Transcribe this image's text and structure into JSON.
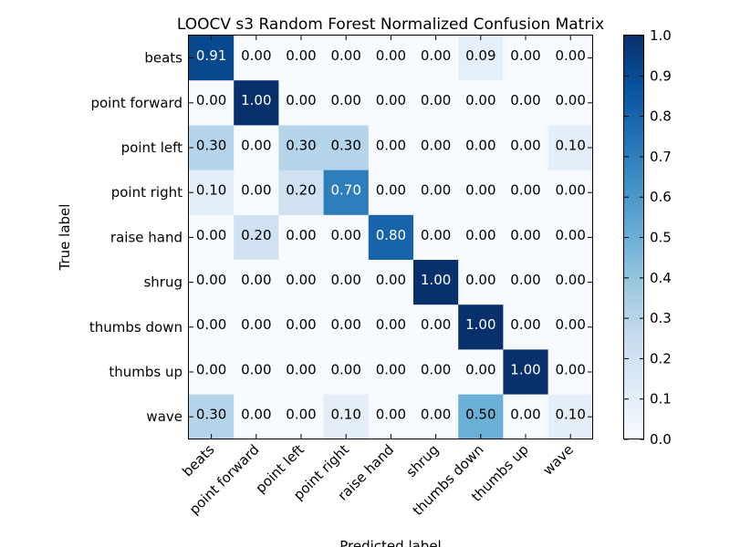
{
  "chart_data": {
    "type": "heatmap",
    "title": "LOOCV s3 Random Forest Normalized Confusion Matrix",
    "xlabel": "Predicted label",
    "ylabel": "True label",
    "labels": [
      "beats",
      "point forward",
      "point left",
      "point right",
      "raise hand",
      "shrug",
      "thumbs down",
      "thumbs up",
      "wave"
    ],
    "matrix": [
      [
        0.91,
        0.0,
        0.0,
        0.0,
        0.0,
        0.0,
        0.09,
        0.0,
        0.0
      ],
      [
        0.0,
        1.0,
        0.0,
        0.0,
        0.0,
        0.0,
        0.0,
        0.0,
        0.0
      ],
      [
        0.3,
        0.0,
        0.3,
        0.3,
        0.0,
        0.0,
        0.0,
        0.0,
        0.1
      ],
      [
        0.1,
        0.0,
        0.2,
        0.7,
        0.0,
        0.0,
        0.0,
        0.0,
        0.0
      ],
      [
        0.0,
        0.2,
        0.0,
        0.0,
        0.8,
        0.0,
        0.0,
        0.0,
        0.0
      ],
      [
        0.0,
        0.0,
        0.0,
        0.0,
        0.0,
        1.0,
        0.0,
        0.0,
        0.0
      ],
      [
        0.0,
        0.0,
        0.0,
        0.0,
        0.0,
        0.0,
        1.0,
        0.0,
        0.0
      ],
      [
        0.0,
        0.0,
        0.0,
        0.0,
        0.0,
        0.0,
        0.0,
        1.0,
        0.0
      ],
      [
        0.3,
        0.0,
        0.0,
        0.1,
        0.0,
        0.0,
        0.5,
        0.0,
        0.1
      ]
    ],
    "colormap": "Blues",
    "colorbar": {
      "range": [
        0.0,
        1.0
      ],
      "ticks": [
        "0.0",
        "0.1",
        "0.2",
        "0.3",
        "0.4",
        "0.5",
        "0.6",
        "0.7",
        "0.8",
        "0.9",
        "1.0"
      ]
    },
    "grid": false
  }
}
